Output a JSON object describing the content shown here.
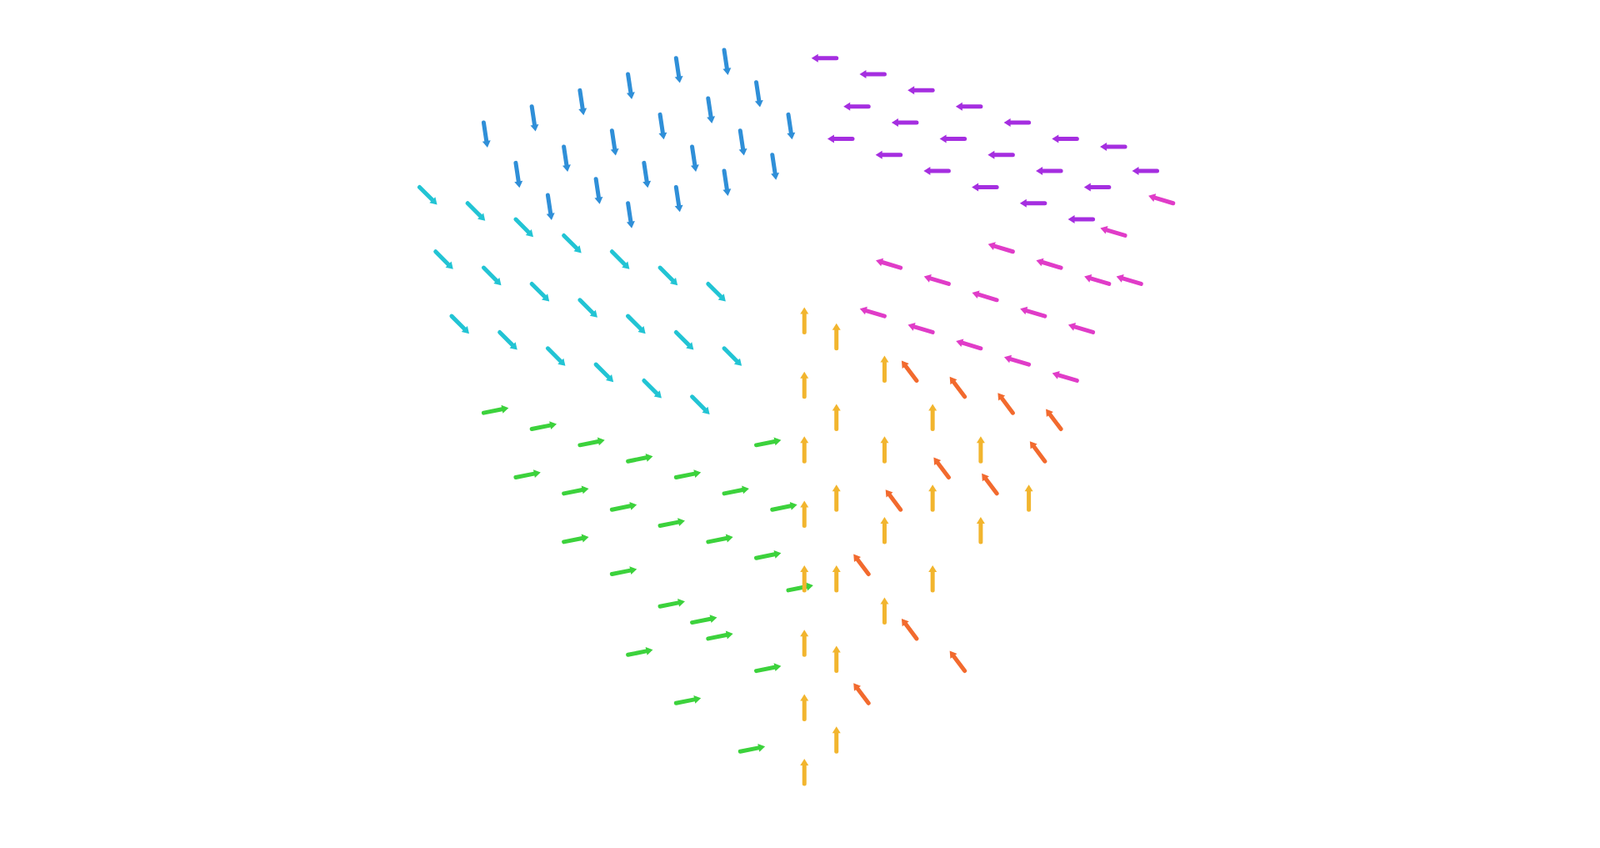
{
  "chart_data": {
    "type": "quiver",
    "tick_labels": false,
    "grid": false,
    "xlim": [
      0,
      100
    ],
    "ylim": [
      0,
      100
    ],
    "series": [
      {
        "color": "#2f8fd8",
        "u": 0.15,
        "v": -1,
        "x": [
          12,
          18,
          24,
          30,
          36,
          42,
          16,
          22,
          28,
          34,
          40,
          46,
          20,
          26,
          32,
          38,
          44,
          50,
          30,
          36,
          42,
          48
        ],
        "y": [
          88,
          90,
          92,
          94,
          96,
          97,
          83,
          85,
          87,
          89,
          91,
          93,
          79,
          81,
          83,
          85,
          87,
          89,
          78,
          80,
          82,
          84
        ]
      },
      {
        "color": "#a52ee0",
        "u": -1,
        "v": 0,
        "x": [
          56,
          62,
          68,
          74,
          80,
          86,
          92,
          60,
          66,
          72,
          78,
          84,
          90,
          64,
          70,
          76,
          82,
          88,
          96,
          58
        ],
        "y": [
          96,
          94,
          92,
          90,
          88,
          86,
          85,
          90,
          88,
          86,
          84,
          82,
          80,
          84,
          82,
          80,
          78,
          76,
          82,
          86
        ]
      },
      {
        "color": "#22c4d4",
        "u": 0.7,
        "v": -0.7,
        "x": [
          4,
          10,
          16,
          22,
          28,
          34,
          40,
          6,
          12,
          18,
          24,
          30,
          36,
          42,
          8,
          14,
          20,
          26,
          32,
          38
        ],
        "y": [
          80,
          78,
          76,
          74,
          72,
          70,
          68,
          72,
          70,
          68,
          66,
          64,
          62,
          60,
          64,
          62,
          60,
          58,
          56,
          54
        ]
      },
      {
        "color": "#3cd23c",
        "u": 1,
        "v": 0.2,
        "x": [
          12,
          18,
          24,
          30,
          36,
          42,
          48,
          16,
          22,
          28,
          34,
          40,
          46,
          22,
          28,
          34,
          40,
          46,
          30,
          36,
          44,
          50,
          46,
          38
        ],
        "y": [
          52,
          50,
          48,
          46,
          44,
          42,
          40,
          44,
          42,
          40,
          38,
          36,
          34,
          36,
          32,
          28,
          24,
          20,
          22,
          16,
          10,
          30,
          48,
          26
        ]
      },
      {
        "color": "#f2b52e",
        "u": 0,
        "v": 1,
        "x": [
          52,
          52,
          52,
          52,
          52,
          52,
          52,
          52,
          56,
          56,
          56,
          56,
          56,
          56,
          62,
          62,
          62,
          62,
          68,
          68,
          68,
          74,
          74,
          80
        ],
        "y": [
          62,
          54,
          46,
          38,
          30,
          22,
          14,
          6,
          60,
          50,
          40,
          30,
          20,
          10,
          56,
          46,
          36,
          26,
          50,
          40,
          30,
          46,
          36,
          40
        ]
      },
      {
        "color": "#e03cc8",
        "u": -1,
        "v": 0.3,
        "x": [
          64,
          70,
          76,
          82,
          88,
          94,
          68,
          74,
          80,
          86,
          92,
          98,
          62,
          78,
          84,
          90
        ],
        "y": [
          70,
          68,
          66,
          64,
          62,
          68,
          62,
          60,
          58,
          56,
          74,
          78,
          64,
          72,
          70,
          68
        ]
      },
      {
        "color": "#f26a2e",
        "u": -0.6,
        "v": 0.8,
        "x": [
          66,
          72,
          78,
          84,
          70,
          76,
          82,
          64,
          60,
          66,
          72,
          60
        ],
        "y": [
          56,
          54,
          52,
          50,
          44,
          42,
          46,
          40,
          32,
          24,
          20,
          16
        ]
      }
    ]
  }
}
